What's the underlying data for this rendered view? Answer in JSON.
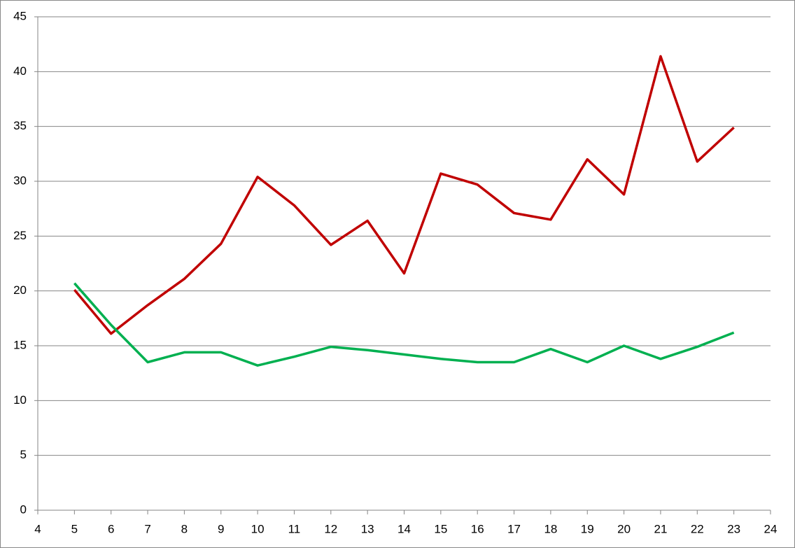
{
  "chart_data": {
    "type": "line",
    "x": [
      5,
      6,
      7,
      8,
      9,
      10,
      11,
      12,
      13,
      14,
      15,
      16,
      17,
      18,
      19,
      20,
      21,
      22,
      23
    ],
    "series": [
      {
        "color": "#c00000",
        "values": [
          20.1,
          16.1,
          18.7,
          21.1,
          24.3,
          30.4,
          27.8,
          24.2,
          26.4,
          21.6,
          30.7,
          29.7,
          27.1,
          26.5,
          32.0,
          28.8,
          41.4,
          31.8,
          34.9
        ]
      },
      {
        "color": "#00b050",
        "values": [
          20.7,
          16.9,
          13.5,
          14.4,
          14.4,
          13.2,
          14.0,
          14.9,
          14.6,
          14.2,
          13.8,
          13.5,
          13.5,
          14.7,
          13.5,
          15.0,
          13.8,
          14.9,
          16.2
        ]
      }
    ],
    "xlim": [
      4,
      24
    ],
    "xticks": [
      4,
      5,
      6,
      7,
      8,
      9,
      10,
      11,
      12,
      13,
      14,
      15,
      16,
      17,
      18,
      19,
      20,
      21,
      22,
      23,
      24
    ],
    "ylim": [
      0,
      45
    ],
    "yticks": [
      0,
      5,
      10,
      15,
      20,
      25,
      30,
      35,
      40,
      45
    ],
    "grid": true
  }
}
